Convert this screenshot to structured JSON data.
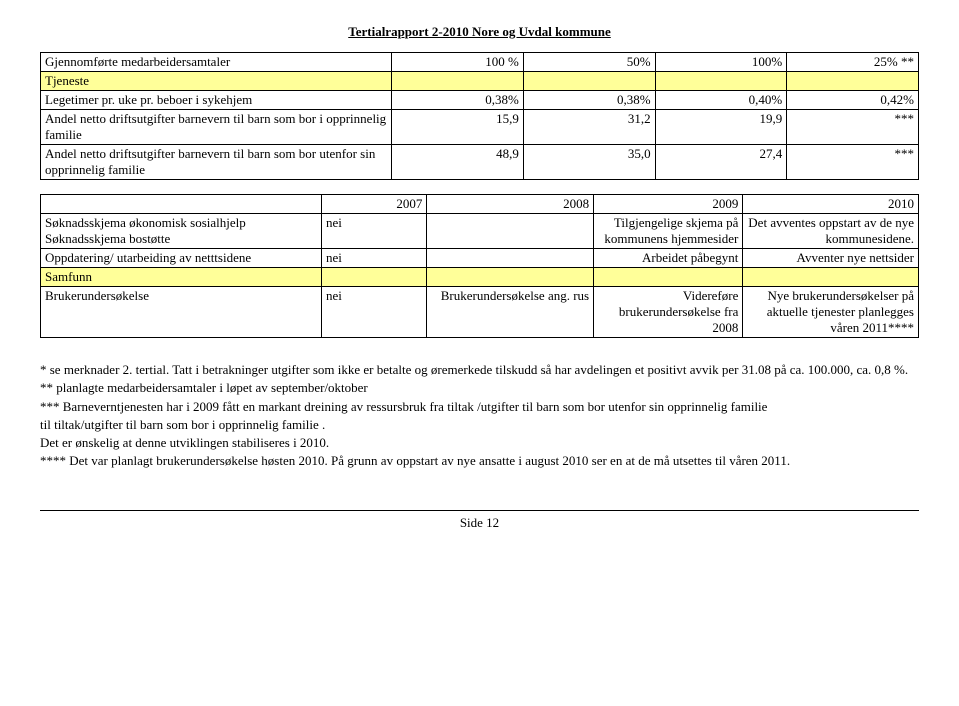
{
  "header": {
    "title": "Tertialrapport  2-2010  Nore og Uvdal kommune"
  },
  "table1": {
    "col_widths": [
      "40%",
      "15%",
      "15%",
      "15%",
      "15%"
    ],
    "rows": [
      {
        "cells": [
          "Gjennomførte medarbeidersamtaler",
          "100 %",
          "50%",
          "100%",
          "25% **"
        ],
        "align": [
          "left",
          "right",
          "right",
          "right",
          "right"
        ]
      },
      {
        "cells": [
          "Tjeneste",
          "",
          "",
          "",
          ""
        ],
        "class": "row-tjeneste",
        "align": [
          "left",
          "right",
          "right",
          "right",
          "right"
        ]
      },
      {
        "cells": [
          "Legetimer pr. uke pr. beboer i sykehjem",
          "0,38%",
          "0,38%",
          "0,40%",
          "0,42%"
        ],
        "align": [
          "left",
          "right",
          "right",
          "right",
          "right"
        ]
      },
      {
        "cells": [
          "Andel netto driftsutgifter barnevern  til barn som bor i opprinnelig familie",
          "15,9",
          "31,2",
          "19,9",
          "***"
        ],
        "align": [
          "left",
          "right",
          "right",
          "right",
          "right"
        ]
      },
      {
        "cells": [
          "Andel netto driftsutgifter barnevern til barn som bor utenfor sin opprinnelig familie",
          "48,9",
          "35,0",
          "27,4",
          "***"
        ],
        "align": [
          "left",
          "right",
          "right",
          "right",
          "right"
        ]
      }
    ]
  },
  "table2": {
    "col_widths": [
      "32%",
      "12%",
      "19%",
      "17%",
      "20%"
    ],
    "header": [
      "",
      "2007",
      "2008",
      "2009",
      "2010"
    ],
    "rows": [
      {
        "cells": [
          "Søknadsskjema økonomisk sosialhjelp\nSøknadsskjema bostøtte",
          "nei",
          "",
          "Tilgjengelige skjema på kommunens hjemmesider",
          "Det avventes oppstart av de nye kommunesidene."
        ],
        "align": [
          "left",
          "left",
          "left",
          "right",
          "right"
        ]
      },
      {
        "cells": [
          "Oppdatering/ utarbeiding av netttsidene",
          "nei",
          "",
          "Arbeidet påbegynt",
          "Avventer nye nettsider"
        ],
        "align": [
          "left",
          "left",
          "left",
          "right",
          "right"
        ]
      },
      {
        "cells": [
          "Samfunn",
          "",
          "",
          "",
          ""
        ],
        "class": "row-samfunn",
        "align": [
          "left",
          "left",
          "left",
          "left",
          "left"
        ]
      },
      {
        "cells": [
          "Brukerundersøkelse",
          "nei",
          "Brukerundersøkelse ang. rus",
          "Videreføre brukerundersøkelse fra 2008",
          "Nye brukerundersøkelser på aktuelle tjenester planlegges våren 2011****"
        ],
        "align": [
          "left",
          "left",
          "right",
          "right",
          "right"
        ]
      }
    ]
  },
  "notes": {
    "lines": [
      "*    se merknader 2. tertial. Tatt i betrakninger utgifter som ikke er betalte og øremerkede tilskudd så har avdelingen et positivt avvik per  31.08 på ca. 100.000, ca. 0,8 %.",
      "**  planlagte medarbeidersamtaler i løpet av september/oktober",
      "*** Barneverntjenesten har i 2009 fått en markant dreining av ressursbruk fra tiltak /utgifter til barn som bor utenfor sin opprinnelig familie"
    ],
    "indented": [
      "til tiltak/utgifter til barn som bor i opprinnelig familie .",
      "Det er ønskelig at denne utviklingen stabiliseres i 2010."
    ],
    "after": [
      "**** Det var planlagt brukerundersøkelse høsten 2010. På grunn av oppstart av nye ansatte i august 2010 ser en at de må utsettes til våren 2011."
    ]
  },
  "footer": {
    "text": "Side 12"
  }
}
